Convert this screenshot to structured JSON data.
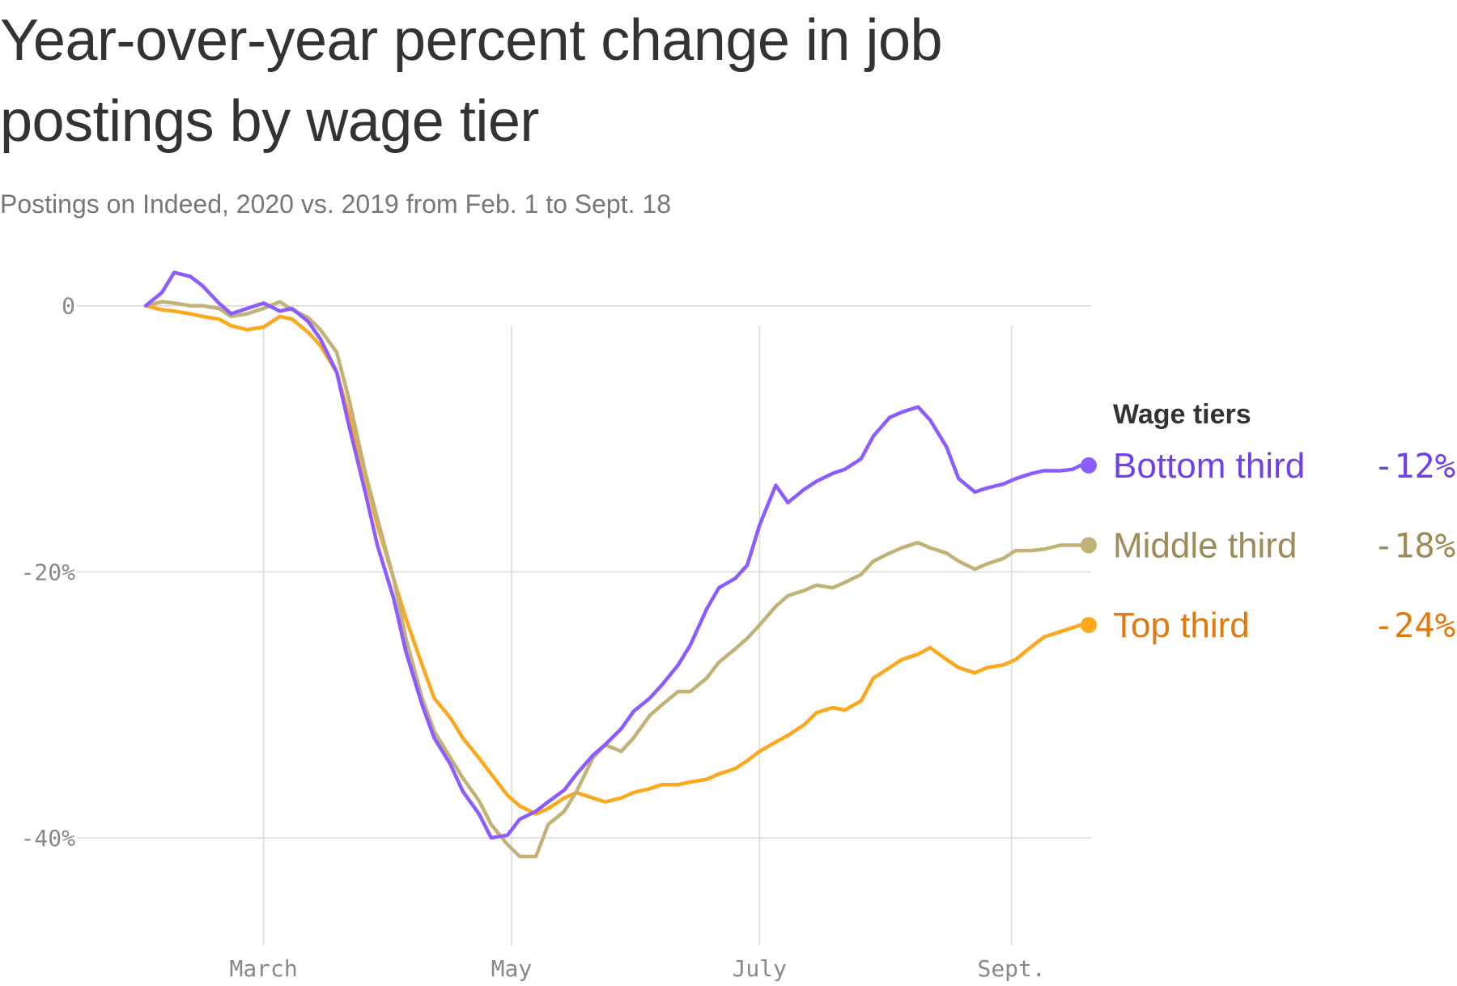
{
  "chart_data": {
    "type": "line",
    "title": "Year-over-year percent change in job postings by wage tier",
    "subtitle": "Postings on Indeed, 2020 vs. 2019 from Feb. 1 to Sept. 18",
    "xlabel": "",
    "ylabel": "",
    "x_ticks": [
      {
        "date": "2020-03-01",
        "label": "March"
      },
      {
        "date": "2020-05-01",
        "label": "May"
      },
      {
        "date": "2020-07-01",
        "label": "July"
      },
      {
        "date": "2020-09-01",
        "label": "Sept."
      }
    ],
    "y_ticks": [
      {
        "value": 0,
        "label": "0"
      },
      {
        "value": -20,
        "label": "-20%"
      },
      {
        "value": -40,
        "label": "-40%"
      }
    ],
    "xlim": [
      "2020-02-01",
      "2020-09-18"
    ],
    "ylim": [
      -47,
      4
    ],
    "grid": true,
    "legend": {
      "title": "Wage tiers",
      "placement": "right"
    },
    "series": [
      {
        "name": "Bottom third",
        "end_label": "-12%",
        "color": "#8c5cff",
        "label_color": "#7040e8",
        "points": [
          [
            "2020-02-01",
            0
          ],
          [
            "2020-02-05",
            1.0
          ],
          [
            "2020-02-08",
            2.5
          ],
          [
            "2020-02-12",
            2.2
          ],
          [
            "2020-02-15",
            1.5
          ],
          [
            "2020-02-19",
            0.2
          ],
          [
            "2020-02-22",
            -0.6
          ],
          [
            "2020-02-26",
            -0.2
          ],
          [
            "2020-03-01",
            0.2
          ],
          [
            "2020-03-05",
            -0.4
          ],
          [
            "2020-03-08",
            -0.2
          ],
          [
            "2020-03-12",
            -1.2
          ],
          [
            "2020-03-15",
            -2.5
          ],
          [
            "2020-03-19",
            -5.0
          ],
          [
            "2020-03-22",
            -9.0
          ],
          [
            "2020-03-26",
            -14.0
          ],
          [
            "2020-03-29",
            -18.0
          ],
          [
            "2020-04-02",
            -22.0
          ],
          [
            "2020-04-05",
            -26.0
          ],
          [
            "2020-04-09",
            -30.0
          ],
          [
            "2020-04-12",
            -32.5
          ],
          [
            "2020-04-16",
            -34.5
          ],
          [
            "2020-04-19",
            -36.5
          ],
          [
            "2020-04-23",
            -38.2
          ],
          [
            "2020-04-26",
            -40.0
          ],
          [
            "2020-04-30",
            -39.8
          ],
          [
            "2020-05-03",
            -38.6
          ],
          [
            "2020-05-07",
            -38.0
          ],
          [
            "2020-05-10",
            -37.3
          ],
          [
            "2020-05-14",
            -36.4
          ],
          [
            "2020-05-17",
            -35.2
          ],
          [
            "2020-05-21",
            -33.8
          ],
          [
            "2020-05-24",
            -33.0
          ],
          [
            "2020-05-28",
            -31.8
          ],
          [
            "2020-05-31",
            -30.5
          ],
          [
            "2020-06-04",
            -29.5
          ],
          [
            "2020-06-07",
            -28.5
          ],
          [
            "2020-06-11",
            -27.0
          ],
          [
            "2020-06-14",
            -25.5
          ],
          [
            "2020-06-18",
            -22.8
          ],
          [
            "2020-06-21",
            -21.2
          ],
          [
            "2020-06-25",
            -20.5
          ],
          [
            "2020-06-28",
            -19.5
          ],
          [
            "2020-07-01",
            -16.5
          ],
          [
            "2020-07-05",
            -13.5
          ],
          [
            "2020-07-08",
            -14.8
          ],
          [
            "2020-07-12",
            -13.8
          ],
          [
            "2020-07-15",
            -13.2
          ],
          [
            "2020-07-19",
            -12.6
          ],
          [
            "2020-07-22",
            -12.3
          ],
          [
            "2020-07-26",
            -11.5
          ],
          [
            "2020-07-29",
            -9.8
          ],
          [
            "2020-08-02",
            -8.4
          ],
          [
            "2020-08-05",
            -8.0
          ],
          [
            "2020-08-09",
            -7.6
          ],
          [
            "2020-08-12",
            -8.6
          ],
          [
            "2020-08-16",
            -10.6
          ],
          [
            "2020-08-19",
            -13.0
          ],
          [
            "2020-08-23",
            -14.0
          ],
          [
            "2020-08-26",
            -13.7
          ],
          [
            "2020-08-30",
            -13.4
          ],
          [
            "2020-09-02",
            -13.0
          ],
          [
            "2020-09-06",
            -12.6
          ],
          [
            "2020-09-09",
            -12.4
          ],
          [
            "2020-09-13",
            -12.4
          ],
          [
            "2020-09-16",
            -12.3
          ],
          [
            "2020-09-18",
            -12.0
          ]
        ]
      },
      {
        "name": "Middle third",
        "end_label": "-18%",
        "color": "#c2b277",
        "label_color": "#9c8c5a",
        "points": [
          [
            "2020-02-01",
            0
          ],
          [
            "2020-02-05",
            0.3
          ],
          [
            "2020-02-08",
            0.2
          ],
          [
            "2020-02-12",
            0.0
          ],
          [
            "2020-02-15",
            0.0
          ],
          [
            "2020-02-19",
            -0.2
          ],
          [
            "2020-02-22",
            -0.8
          ],
          [
            "2020-02-26",
            -0.6
          ],
          [
            "2020-03-01",
            -0.2
          ],
          [
            "2020-03-05",
            0.3
          ],
          [
            "2020-03-08",
            -0.3
          ],
          [
            "2020-03-12",
            -0.9
          ],
          [
            "2020-03-15",
            -1.8
          ],
          [
            "2020-03-19",
            -3.5
          ],
          [
            "2020-03-22",
            -7.0
          ],
          [
            "2020-03-26",
            -12.5
          ],
          [
            "2020-03-29",
            -16.0
          ],
          [
            "2020-04-02",
            -20.5
          ],
          [
            "2020-04-05",
            -25.0
          ],
          [
            "2020-04-09",
            -29.5
          ],
          [
            "2020-04-12",
            -32.0
          ],
          [
            "2020-04-16",
            -34.0
          ],
          [
            "2020-04-19",
            -35.5
          ],
          [
            "2020-04-23",
            -37.2
          ],
          [
            "2020-04-26",
            -39.0
          ],
          [
            "2020-04-30",
            -40.5
          ],
          [
            "2020-05-03",
            -41.4
          ],
          [
            "2020-05-07",
            -41.4
          ],
          [
            "2020-05-10",
            -39.0
          ],
          [
            "2020-05-14",
            -38.0
          ],
          [
            "2020-05-17",
            -36.5
          ],
          [
            "2020-05-21",
            -34.0
          ],
          [
            "2020-05-24",
            -33.0
          ],
          [
            "2020-05-28",
            -33.5
          ],
          [
            "2020-05-31",
            -32.5
          ],
          [
            "2020-06-04",
            -30.8
          ],
          [
            "2020-06-07",
            -30.0
          ],
          [
            "2020-06-11",
            -29.0
          ],
          [
            "2020-06-14",
            -29.0
          ],
          [
            "2020-06-18",
            -28.0
          ],
          [
            "2020-06-21",
            -26.8
          ],
          [
            "2020-06-25",
            -25.8
          ],
          [
            "2020-06-28",
            -25.0
          ],
          [
            "2020-07-01",
            -24.0
          ],
          [
            "2020-07-05",
            -22.6
          ],
          [
            "2020-07-08",
            -21.8
          ],
          [
            "2020-07-12",
            -21.4
          ],
          [
            "2020-07-15",
            -21.0
          ],
          [
            "2020-07-19",
            -21.2
          ],
          [
            "2020-07-22",
            -20.8
          ],
          [
            "2020-07-26",
            -20.2
          ],
          [
            "2020-07-29",
            -19.2
          ],
          [
            "2020-08-02",
            -18.6
          ],
          [
            "2020-08-05",
            -18.2
          ],
          [
            "2020-08-09",
            -17.8
          ],
          [
            "2020-08-12",
            -18.2
          ],
          [
            "2020-08-16",
            -18.6
          ],
          [
            "2020-08-19",
            -19.2
          ],
          [
            "2020-08-23",
            -19.8
          ],
          [
            "2020-08-26",
            -19.4
          ],
          [
            "2020-08-30",
            -19.0
          ],
          [
            "2020-09-02",
            -18.4
          ],
          [
            "2020-09-06",
            -18.4
          ],
          [
            "2020-09-09",
            -18.3
          ],
          [
            "2020-09-13",
            -18.0
          ],
          [
            "2020-09-16",
            -18.0
          ],
          [
            "2020-09-18",
            -18.0
          ]
        ]
      },
      {
        "name": "Top third",
        "end_label": "-24%",
        "color": "#fba81e",
        "label_color": "#e07a10",
        "points": [
          [
            "2020-02-01",
            0
          ],
          [
            "2020-02-05",
            -0.3
          ],
          [
            "2020-02-08",
            -0.4
          ],
          [
            "2020-02-12",
            -0.6
          ],
          [
            "2020-02-15",
            -0.8
          ],
          [
            "2020-02-19",
            -1.0
          ],
          [
            "2020-02-22",
            -1.5
          ],
          [
            "2020-02-26",
            -1.8
          ],
          [
            "2020-03-01",
            -1.6
          ],
          [
            "2020-03-05",
            -0.8
          ],
          [
            "2020-03-08",
            -1.0
          ],
          [
            "2020-03-12",
            -2.0
          ],
          [
            "2020-03-15",
            -3.0
          ],
          [
            "2020-03-19",
            -5.0
          ],
          [
            "2020-03-22",
            -8.2
          ],
          [
            "2020-03-26",
            -12.8
          ],
          [
            "2020-03-29",
            -16.5
          ],
          [
            "2020-04-02",
            -20.5
          ],
          [
            "2020-04-05",
            -23.5
          ],
          [
            "2020-04-09",
            -27.0
          ],
          [
            "2020-04-12",
            -29.5
          ],
          [
            "2020-04-16",
            -31.0
          ],
          [
            "2020-04-19",
            -32.5
          ],
          [
            "2020-04-23",
            -34.0
          ],
          [
            "2020-04-26",
            -35.2
          ],
          [
            "2020-04-30",
            -36.8
          ],
          [
            "2020-05-03",
            -37.6
          ],
          [
            "2020-05-07",
            -38.2
          ],
          [
            "2020-05-10",
            -37.8
          ],
          [
            "2020-05-14",
            -37.0
          ],
          [
            "2020-05-17",
            -36.6
          ],
          [
            "2020-05-21",
            -37.0
          ],
          [
            "2020-05-24",
            -37.3
          ],
          [
            "2020-05-28",
            -37.0
          ],
          [
            "2020-05-31",
            -36.6
          ],
          [
            "2020-06-04",
            -36.3
          ],
          [
            "2020-06-07",
            -36.0
          ],
          [
            "2020-06-11",
            -36.0
          ],
          [
            "2020-06-14",
            -35.8
          ],
          [
            "2020-06-18",
            -35.6
          ],
          [
            "2020-06-21",
            -35.2
          ],
          [
            "2020-06-25",
            -34.8
          ],
          [
            "2020-06-28",
            -34.2
          ],
          [
            "2020-07-01",
            -33.5
          ],
          [
            "2020-07-05",
            -32.8
          ],
          [
            "2020-07-08",
            -32.3
          ],
          [
            "2020-07-12",
            -31.5
          ],
          [
            "2020-07-15",
            -30.6
          ],
          [
            "2020-07-19",
            -30.2
          ],
          [
            "2020-07-22",
            -30.4
          ],
          [
            "2020-07-26",
            -29.7
          ],
          [
            "2020-07-29",
            -28.0
          ],
          [
            "2020-08-02",
            -27.2
          ],
          [
            "2020-08-05",
            -26.6
          ],
          [
            "2020-08-09",
            -26.2
          ],
          [
            "2020-08-12",
            -25.7
          ],
          [
            "2020-08-16",
            -26.6
          ],
          [
            "2020-08-19",
            -27.2
          ],
          [
            "2020-08-23",
            -27.6
          ],
          [
            "2020-08-26",
            -27.2
          ],
          [
            "2020-08-30",
            -27.0
          ],
          [
            "2020-09-02",
            -26.6
          ],
          [
            "2020-09-06",
            -25.6
          ],
          [
            "2020-09-09",
            -24.9
          ],
          [
            "2020-09-13",
            -24.5
          ],
          [
            "2020-09-16",
            -24.2
          ],
          [
            "2020-09-18",
            -24.0
          ]
        ]
      }
    ]
  }
}
